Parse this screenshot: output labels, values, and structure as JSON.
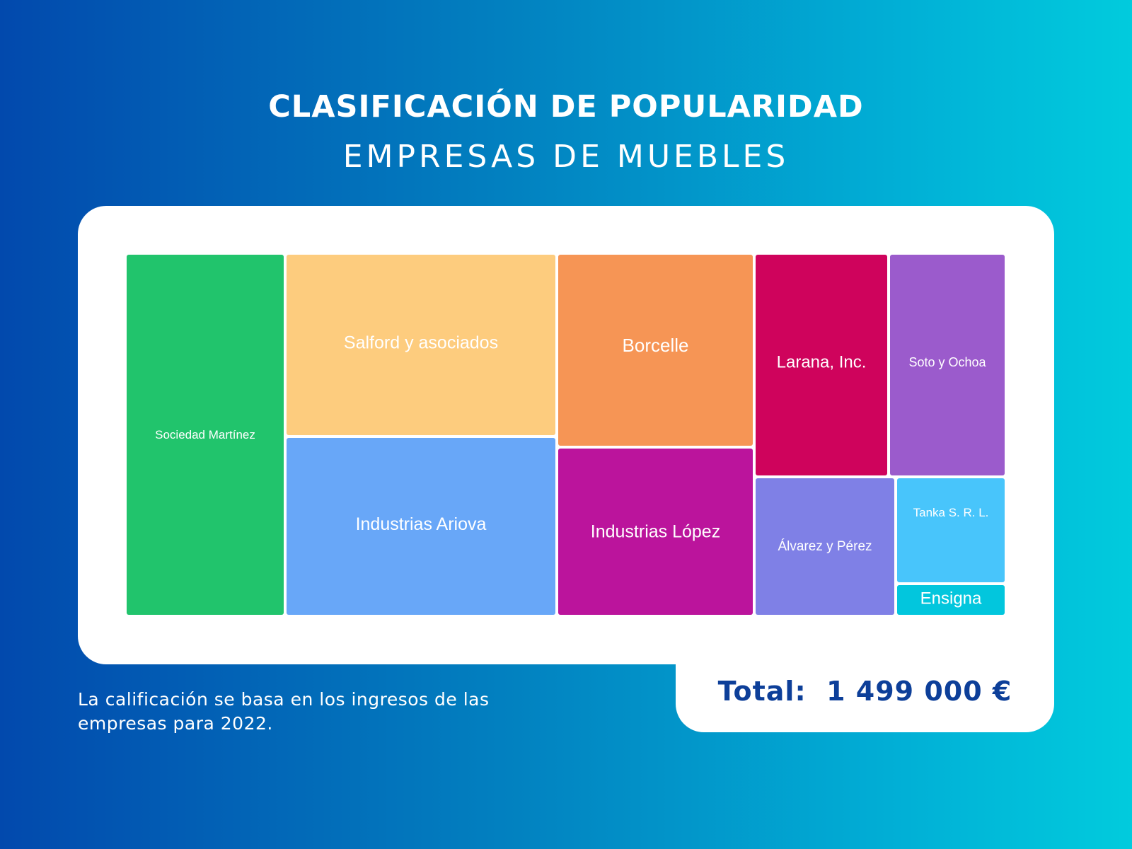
{
  "header": {
    "title": "CLASIFICACIÓN DE POPULARIDAD",
    "subtitle": "EMPRESAS DE MUEBLES"
  },
  "chart_data": {
    "type": "treemap",
    "title": "CLASIFICACIÓN DE POPULARIDAD",
    "subtitle": "EMPRESAS DE MUEBLES",
    "items": [
      {
        "name": "Sociedad Martínez",
        "color": "#21c46c"
      },
      {
        "name": "Salford y asociados",
        "color": "#fdcc7e"
      },
      {
        "name": "Industrias Ariova",
        "color": "#68a7f8"
      },
      {
        "name": "Borcelle",
        "color": "#f69555"
      },
      {
        "name": "Industrias López",
        "color": "#bb149c"
      },
      {
        "name": "Larana, Inc.",
        "color": "#cf035c"
      },
      {
        "name": "Soto y Ochoa",
        "color": "#9b5bcc"
      },
      {
        "name": "Álvarez y Pérez",
        "color": "#7f80e6"
      },
      {
        "name": "Tanka S. R. L.",
        "color": "#48c5fb"
      },
      {
        "name": "Ensigna",
        "color": "#02c6dd"
      }
    ]
  },
  "total": {
    "label": "Total:",
    "value": "1 499 000 €"
  },
  "note": "La calificación se basa en los ingresos de las empresas para 2022.",
  "colors": {
    "background_start": "#0249ad",
    "background_end": "#01cbdd",
    "total_text": "#0d3f99"
  }
}
